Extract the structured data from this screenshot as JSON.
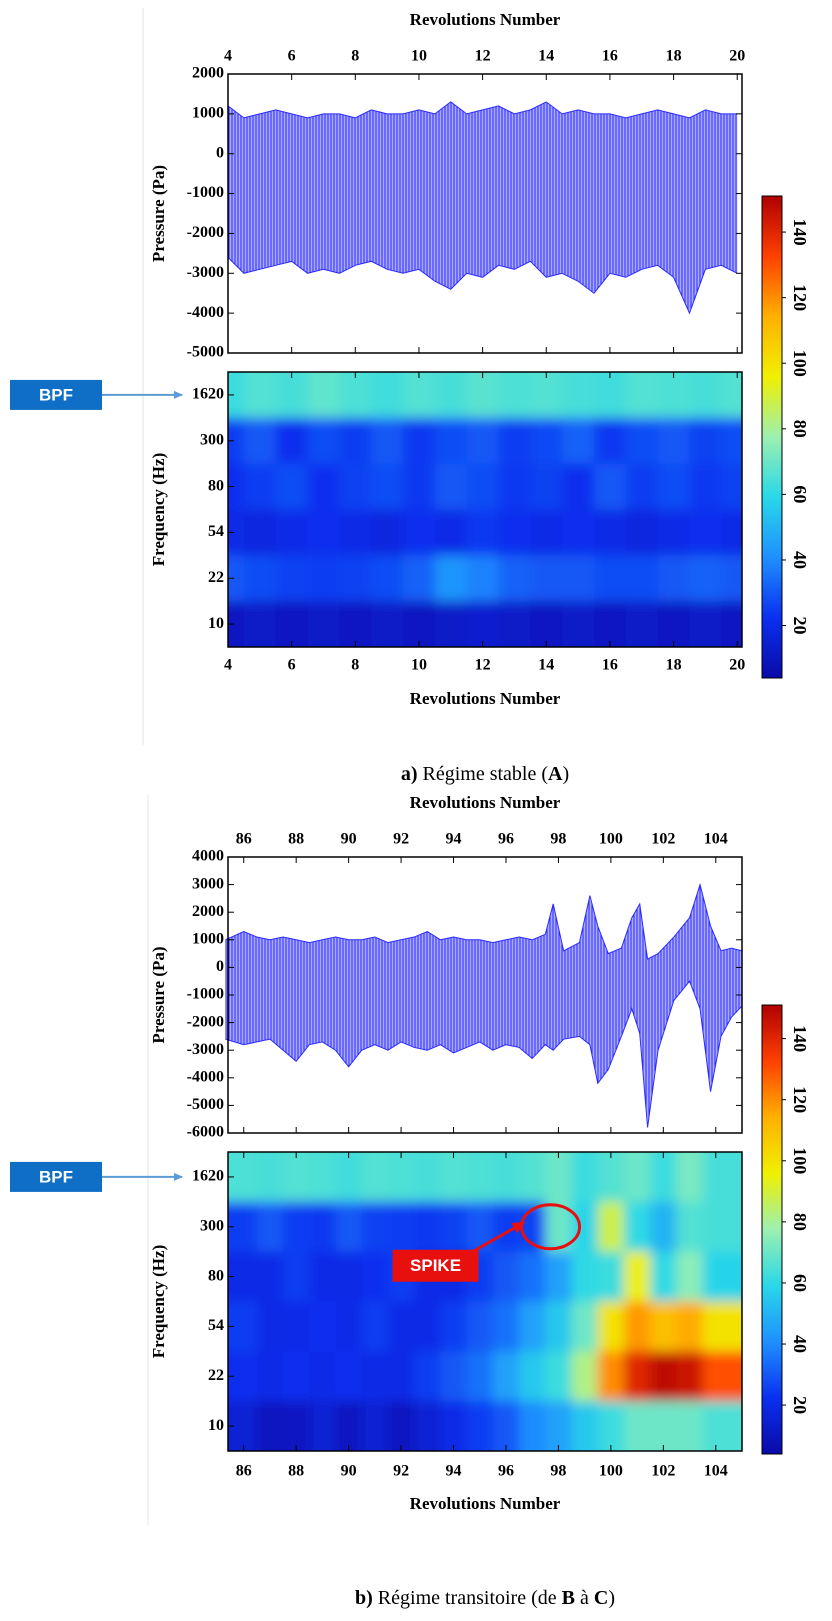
{
  "chart_data": [
    {
      "type": "band",
      "xlabel": "Revolutions Number",
      "ylabel": "Pressure (Pa)",
      "color": "#2b2bff",
      "x": [
        4,
        4.5,
        5,
        5.5,
        6,
        6.5,
        7,
        7.5,
        8,
        8.5,
        9,
        9.5,
        10,
        10.5,
        11,
        11.5,
        12,
        12.5,
        13,
        13.5,
        14,
        14.5,
        15,
        15.5,
        16,
        16.5,
        17,
        17.5,
        18,
        18.5,
        19,
        19.5,
        20
      ],
      "upper": [
        1200,
        900,
        1000,
        1100,
        1000,
        900,
        1000,
        1000,
        900,
        1100,
        1000,
        1000,
        1100,
        1000,
        1300,
        1000,
        1100,
        1200,
        1000,
        1100,
        1300,
        1000,
        1100,
        1000,
        1000,
        900,
        1000,
        1100,
        1000,
        900,
        1100,
        1000,
        1000
      ],
      "lower": [
        -2600,
        -3000,
        -2900,
        -2800,
        -2700,
        -3000,
        -2900,
        -3000,
        -2800,
        -2700,
        -2900,
        -3000,
        -2900,
        -3200,
        -3400,
        -3000,
        -3100,
        -2800,
        -2900,
        -2700,
        -3100,
        -3000,
        -3200,
        -3500,
        -3000,
        -3100,
        -2900,
        -2800,
        -3100,
        -4000,
        -2900,
        -2800,
        -3000
      ],
      "xlim": [
        4,
        20.15
      ],
      "xticks": [
        4,
        6,
        8,
        10,
        12,
        14,
        16,
        18,
        20
      ],
      "ylim": [
        -5000,
        2000
      ],
      "yticks": [
        -5000,
        -4000,
        -3000,
        -2000,
        -1000,
        0,
        1000,
        2000
      ]
    },
    {
      "type": "heatmap",
      "xlabel": "Revolutions Number",
      "ylabel": "Frequency (Hz)",
      "x": [
        4,
        5,
        6,
        7,
        8,
        9,
        10,
        11,
        12,
        13,
        14,
        15,
        16,
        17,
        18,
        19,
        20
      ],
      "y": [
        1620,
        300,
        80,
        54,
        22,
        10
      ],
      "z": [
        [
          62,
          66,
          64,
          68,
          65,
          63,
          66,
          64,
          67,
          65,
          66,
          64,
          63,
          66,
          65,
          64,
          66
        ],
        [
          25,
          30,
          22,
          28,
          25,
          30,
          24,
          28,
          30,
          25,
          27,
          32,
          24,
          28,
          30,
          26,
          28
        ],
        [
          22,
          25,
          28,
          22,
          26,
          28,
          24,
          30,
          28,
          24,
          26,
          22,
          30,
          25,
          28,
          24,
          26
        ],
        [
          20,
          18,
          20,
          22,
          20,
          18,
          22,
          20,
          24,
          22,
          20,
          22,
          20,
          18,
          20,
          22,
          20
        ],
        [
          30,
          28,
          26,
          25,
          26,
          28,
          32,
          42,
          38,
          32,
          30,
          30,
          28,
          28,
          30,
          32,
          30
        ],
        [
          10,
          12,
          10,
          12,
          10,
          12,
          10,
          12,
          14,
          12,
          10,
          12,
          10,
          12,
          10,
          12,
          10
        ]
      ],
      "xlim": [
        4,
        20.15
      ],
      "xticks": [
        4,
        6,
        8,
        10,
        12,
        14,
        16,
        18,
        20
      ],
      "zlim": [
        4,
        151
      ],
      "zticks": [
        20,
        40,
        60,
        80,
        100,
        120,
        140
      ],
      "colors": [
        "#0a0aa8",
        "#0a30f0",
        "#1e90ff",
        "#28d8e8",
        "#9cf0b0",
        "#f0f000",
        "#ffb000",
        "#ff4000",
        "#b00000"
      ],
      "annotations": [
        {
          "text": "BPF",
          "y": 1620
        }
      ],
      "caption": [
        {
          "text": "a)",
          "bold": true
        },
        {
          "text": " Régime stable (",
          "bold": false
        },
        {
          "text": "A",
          "bold": true
        },
        {
          "text": ")",
          "bold": false
        }
      ]
    },
    {
      "type": "band",
      "xlabel": "Revolutions Number",
      "ylabel": "Pressure (Pa)",
      "color": "#2b2bff",
      "x": [
        85.3,
        86,
        86.5,
        87,
        87.5,
        88,
        88.5,
        89,
        89.5,
        90,
        90.5,
        91,
        91.5,
        92,
        92.5,
        93,
        93.5,
        94,
        94.5,
        95,
        95.5,
        96,
        96.5,
        97,
        97.5,
        97.8,
        98.2,
        98.8,
        99.2,
        99.5,
        99.9,
        100.4,
        100.8,
        101.1,
        101.4,
        101.8,
        102.4,
        103,
        103.4,
        103.8,
        104.2,
        104.6,
        105
      ],
      "upper": [
        1000,
        1300,
        1100,
        1000,
        1100,
        1000,
        900,
        1000,
        1100,
        1000,
        1000,
        1100,
        900,
        1000,
        1100,
        1300,
        1000,
        1100,
        1000,
        1000,
        900,
        1000,
        1100,
        1000,
        1200,
        2300,
        600,
        900,
        2600,
        1500,
        500,
        700,
        1800,
        2300,
        300,
        500,
        1100,
        1800,
        3000,
        1500,
        600,
        700,
        600
      ],
      "lower": [
        -2600,
        -2800,
        -2700,
        -2600,
        -3000,
        -3400,
        -2800,
        -2700,
        -3000,
        -3600,
        -3000,
        -2800,
        -3000,
        -2700,
        -2900,
        -3000,
        -2800,
        -3100,
        -2900,
        -2700,
        -3000,
        -2800,
        -2900,
        -3300,
        -2800,
        -3000,
        -2600,
        -2500,
        -2800,
        -4200,
        -3700,
        -2500,
        -1500,
        -2400,
        -5800,
        -3000,
        -1200,
        -500,
        -1500,
        -4500,
        -2500,
        -1800,
        -1400
      ],
      "xlim": [
        85.4,
        105
      ],
      "xticks": [
        86,
        88,
        90,
        92,
        94,
        96,
        98,
        100,
        102,
        104
      ],
      "ylim": [
        -6000,
        4000
      ],
      "yticks": [
        -6000,
        -5000,
        -4000,
        -3000,
        -2000,
        -1000,
        0,
        1000,
        2000,
        3000,
        4000
      ]
    },
    {
      "type": "heatmap",
      "xlabel": "Revolutions Number",
      "ylabel": "Frequency (Hz)",
      "x": [
        86,
        87,
        88,
        89,
        90,
        91,
        92,
        93,
        94,
        95,
        96,
        97,
        98,
        99,
        100,
        101,
        102,
        103,
        104
      ],
      "y": [
        1620,
        300,
        80,
        54,
        22,
        10
      ],
      "z": [
        [
          65,
          64,
          66,
          65,
          63,
          66,
          65,
          64,
          66,
          65,
          64,
          66,
          70,
          62,
          66,
          70,
          62,
          72,
          64
        ],
        [
          25,
          30,
          25,
          24,
          30,
          26,
          25,
          24,
          26,
          30,
          25,
          26,
          70,
          58,
          88,
          60,
          50,
          66,
          64
        ],
        [
          20,
          20,
          25,
          20,
          20,
          22,
          25,
          20,
          20,
          25,
          30,
          35,
          45,
          60,
          62,
          95,
          60,
          75,
          58
        ],
        [
          25,
          20,
          20,
          22,
          20,
          25,
          20,
          20,
          25,
          30,
          35,
          45,
          55,
          70,
          100,
          118,
          110,
          115,
          100
        ],
        [
          22,
          20,
          22,
          20,
          22,
          20,
          20,
          25,
          30,
          35,
          45,
          55,
          62,
          82,
          120,
          140,
          148,
          145,
          130
        ],
        [
          15,
          10,
          10,
          15,
          10,
          15,
          10,
          15,
          20,
          25,
          30,
          40,
          45,
          55,
          62,
          70,
          70,
          70,
          65
        ]
      ],
      "xlim": [
        85.4,
        105
      ],
      "xticks": [
        86,
        88,
        90,
        92,
        94,
        96,
        98,
        100,
        102,
        104
      ],
      "zlim": [
        4,
        151
      ],
      "zticks": [
        20,
        40,
        60,
        80,
        100,
        120,
        140
      ],
      "colors": [
        "#0a0aa8",
        "#0a30f0",
        "#1e90ff",
        "#28d8e8",
        "#9cf0b0",
        "#f0f000",
        "#ffb000",
        "#ff4000",
        "#b00000"
      ],
      "annotations": [
        {
          "text": "BPF",
          "y": 1620
        },
        {
          "text": "SPIKE",
          "x": 97.7,
          "y": 300
        }
      ],
      "caption": [
        {
          "text": "b)",
          "bold": true
        },
        {
          "text": " Régime transitoire (de ",
          "bold": false
        },
        {
          "text": "B",
          "bold": true
        },
        {
          "text": " à ",
          "bold": false
        },
        {
          "text": "C",
          "bold": true
        },
        {
          "text": ")",
          "bold": false
        }
      ]
    }
  ]
}
